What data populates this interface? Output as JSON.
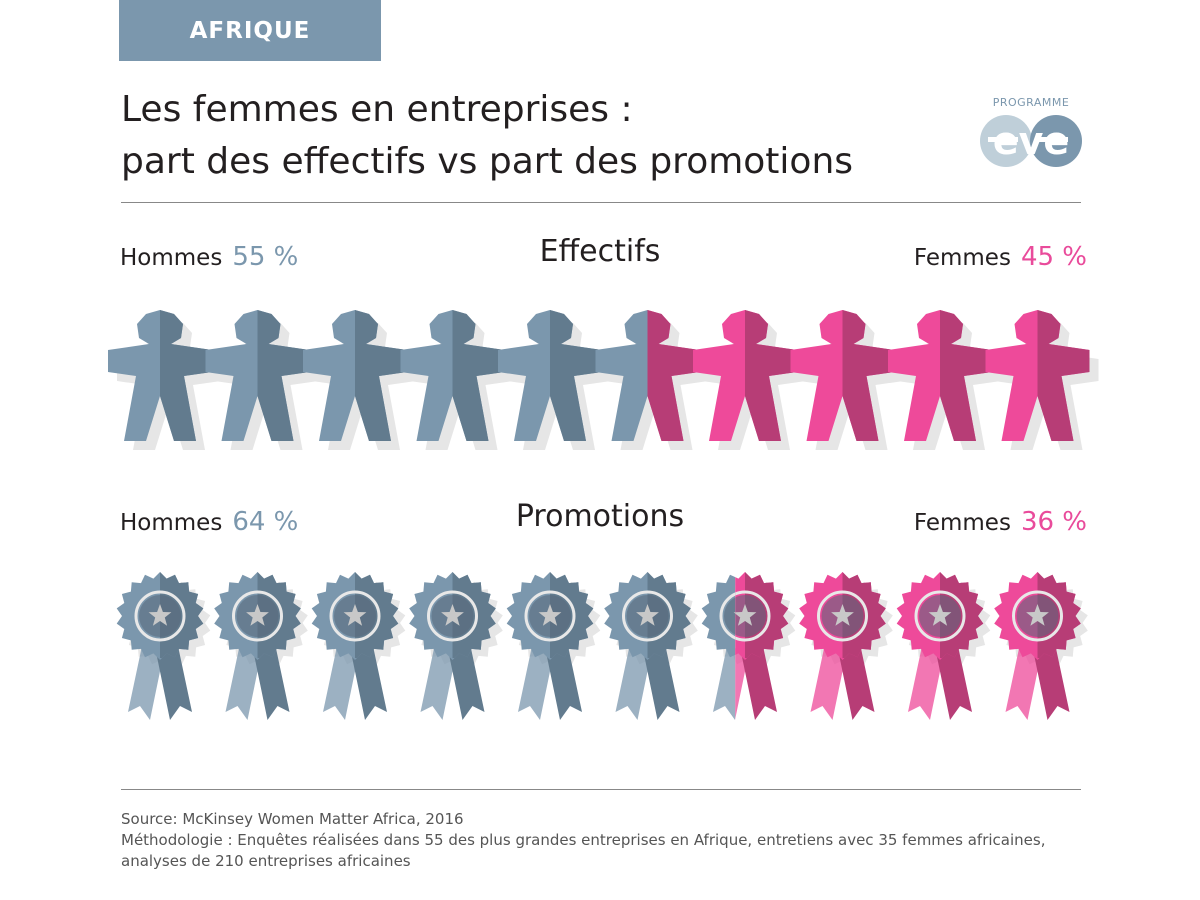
{
  "header": {
    "region_tag": "AFRIQUE",
    "title_line1": "Les femmes en entreprises :",
    "title_line2": "part des effectifs vs part des promotions"
  },
  "logo": {
    "small_text": "PROGRAMME",
    "wordmark": "eve"
  },
  "colors": {
    "men_light": "#7b97ad",
    "men_dark": "#627b8e",
    "women_light": "#ee4a9a",
    "women_dark": "#b73d76",
    "shadow": "#e6e6e6",
    "tag_bg": "#7b97ad"
  },
  "chart_data": [
    {
      "type": "pictogram",
      "title": "Effectifs",
      "icon": "person-figure-icon",
      "units": 10,
      "series": [
        {
          "name": "Hommes",
          "value": 55,
          "label": "55 %"
        },
        {
          "name": "Femmes",
          "value": 45,
          "label": "45 %"
        }
      ]
    },
    {
      "type": "pictogram",
      "title": "Promotions",
      "icon": "award-ribbon-icon",
      "units": 10,
      "series": [
        {
          "name": "Hommes",
          "value": 64,
          "label": "64 %"
        },
        {
          "name": "Femmes",
          "value": 36,
          "label": "36 %"
        }
      ]
    }
  ],
  "footer": {
    "source": "Source: McKinsey Women Matter Africa, 2016",
    "methodology": "Méthodologie : Enquêtes réalisées dans 55 des plus grandes entreprises en Afrique, entretiens avec 35 femmes africaines, analyses de 210 entreprises africaines"
  }
}
